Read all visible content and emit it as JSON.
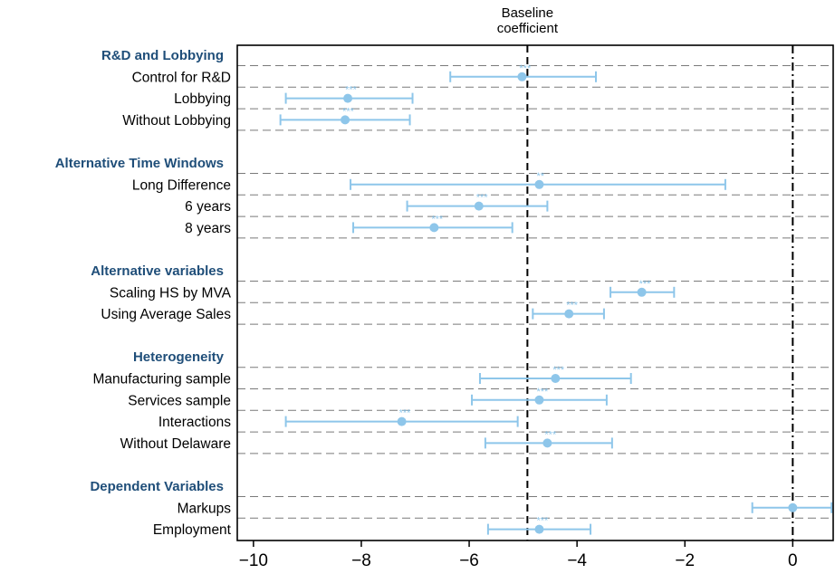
{
  "chart_data": {
    "type": "coefficient-plot",
    "title": "",
    "xlabel": "",
    "ylabel": "",
    "xlim": [
      -10.3,
      0.75
    ],
    "xticks": [
      -10,
      -8,
      -6,
      -4,
      -2,
      0
    ],
    "xtick_labels": [
      "−10",
      "−8",
      "−6",
      "−4",
      "−2",
      "0"
    ],
    "grid": "dashed horizontal lines between rows",
    "reference_lines": [
      {
        "value": -4.92,
        "style": "dashed",
        "label": [
          "Baseline",
          "coefficient"
        ]
      },
      {
        "value": 0,
        "style": "dash-dot",
        "label": []
      }
    ],
    "color": "#8ec6ea",
    "groups": [
      {
        "name": "R&D and Lobbying",
        "rows": [
          {
            "label": "Control for R&D",
            "estimate": -5.02,
            "ci_low": -6.35,
            "ci_high": -3.65,
            "stars": "***"
          },
          {
            "label": "Lobbying",
            "estimate": -8.25,
            "ci_low": -9.4,
            "ci_high": -7.05,
            "stars": "***"
          },
          {
            "label": "Without Lobbying",
            "estimate": -8.3,
            "ci_low": -9.5,
            "ci_high": -7.1,
            "stars": "***"
          }
        ]
      },
      {
        "name": "Alternative Time Windows",
        "rows": [
          {
            "label": "Long Difference",
            "estimate": -4.7,
            "ci_low": -8.2,
            "ci_high": -1.25,
            "stars": "**"
          },
          {
            "label": "6 years",
            "estimate": -5.82,
            "ci_low": -7.15,
            "ci_high": -4.55,
            "stars": "***"
          },
          {
            "label": "8 years",
            "estimate": -6.65,
            "ci_low": -8.15,
            "ci_high": -5.2,
            "stars": "***"
          }
        ]
      },
      {
        "name": "Alternative variables",
        "rows": [
          {
            "label": "Scaling HS by MVA",
            "estimate": -2.8,
            "ci_low": -3.38,
            "ci_high": -2.2,
            "stars": "***"
          },
          {
            "label": "Using Average Sales",
            "estimate": -4.15,
            "ci_low": -4.82,
            "ci_high": -3.5,
            "stars": "***"
          }
        ]
      },
      {
        "name": "Heterogeneity",
        "rows": [
          {
            "label": "Manufacturing sample",
            "estimate": -4.4,
            "ci_low": -5.8,
            "ci_high": -3.0,
            "stars": "***"
          },
          {
            "label": "Services sample",
            "estimate": -4.7,
            "ci_low": -5.95,
            "ci_high": -3.45,
            "stars": "***"
          },
          {
            "label": "Interactions",
            "estimate": -7.25,
            "ci_low": -9.4,
            "ci_high": -5.1,
            "stars": "***"
          },
          {
            "label": "Without Delaware",
            "estimate": -4.55,
            "ci_low": -5.7,
            "ci_high": -3.35,
            "stars": "***"
          }
        ]
      },
      {
        "name": "Dependent Variables",
        "rows": [
          {
            "label": "Markups",
            "estimate": 0.0,
            "ci_low": -0.75,
            "ci_high": 0.72,
            "stars": ""
          },
          {
            "label": "Employment",
            "estimate": -4.7,
            "ci_low": -5.65,
            "ci_high": -3.75,
            "stars": "***"
          }
        ]
      }
    ]
  }
}
